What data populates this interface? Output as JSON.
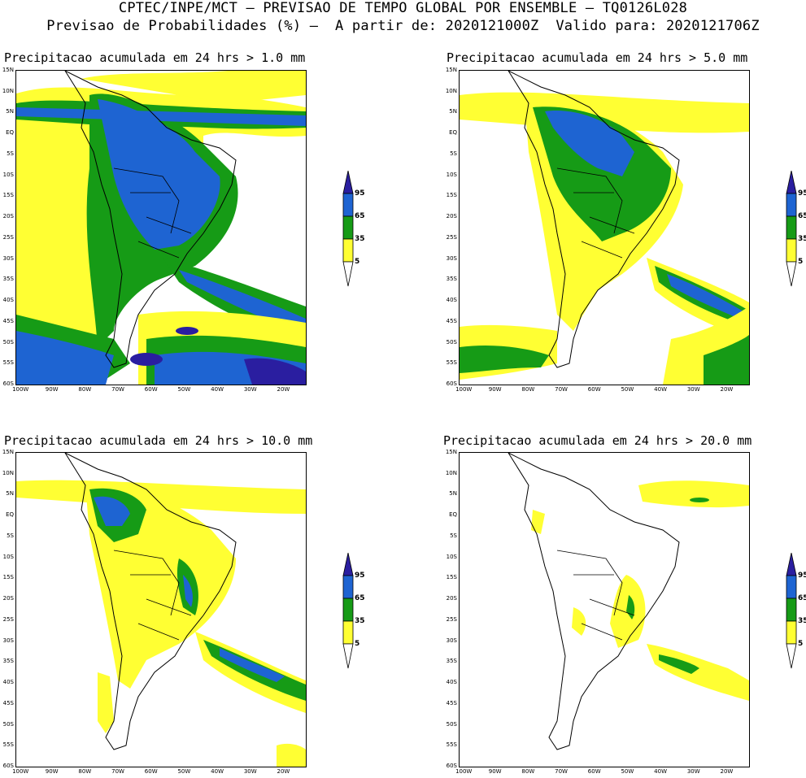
{
  "header": {
    "line1": "CPTEC/INPE/MCT – PREVISAO DE TEMPO GLOBAL POR ENSEMBLE – TQ0126L028",
    "line2": "Previsao de Probabilidades (%) –  A partir de: 2020121000Z  Valido para: 2020121706Z"
  },
  "panels": [
    {
      "title": "Precipitacao acumulada em 24 hrs > 1.0 mm",
      "threshold_mm": 1.0
    },
    {
      "title": "Precipitacao acumulada em 24 hrs > 5.0 mm",
      "threshold_mm": 5.0
    },
    {
      "title": "Precipitacao acumulada em 24 hrs > 10.0 mm",
      "threshold_mm": 10.0
    },
    {
      "title": "Precipitacao acumulada em 24 hrs > 20.0 mm",
      "threshold_mm": 20.0
    }
  ],
  "lat_labels": [
    "15N",
    "10N",
    "5N",
    "EQ",
    "5S",
    "10S",
    "15S",
    "20S",
    "25S",
    "30S",
    "35S",
    "40S",
    "45S",
    "50S",
    "55S",
    "60S"
  ],
  "lon_labels": [
    "100W",
    "90W",
    "80W",
    "70W",
    "60W",
    "50W",
    "40W",
    "30W",
    "20W"
  ],
  "colorbar": {
    "labels": [
      "95",
      "65",
      "35",
      "5"
    ],
    "colors": {
      "lt5": "#ffffff",
      "5_35": "#ffff33",
      "35_65": "#169b16",
      "65_95": "#1e64d2",
      "gt95": "#2a1ea0"
    }
  },
  "map_extent": {
    "lon_min": -101,
    "lon_max": -13,
    "lat_min": -60,
    "lat_max": 15
  }
}
